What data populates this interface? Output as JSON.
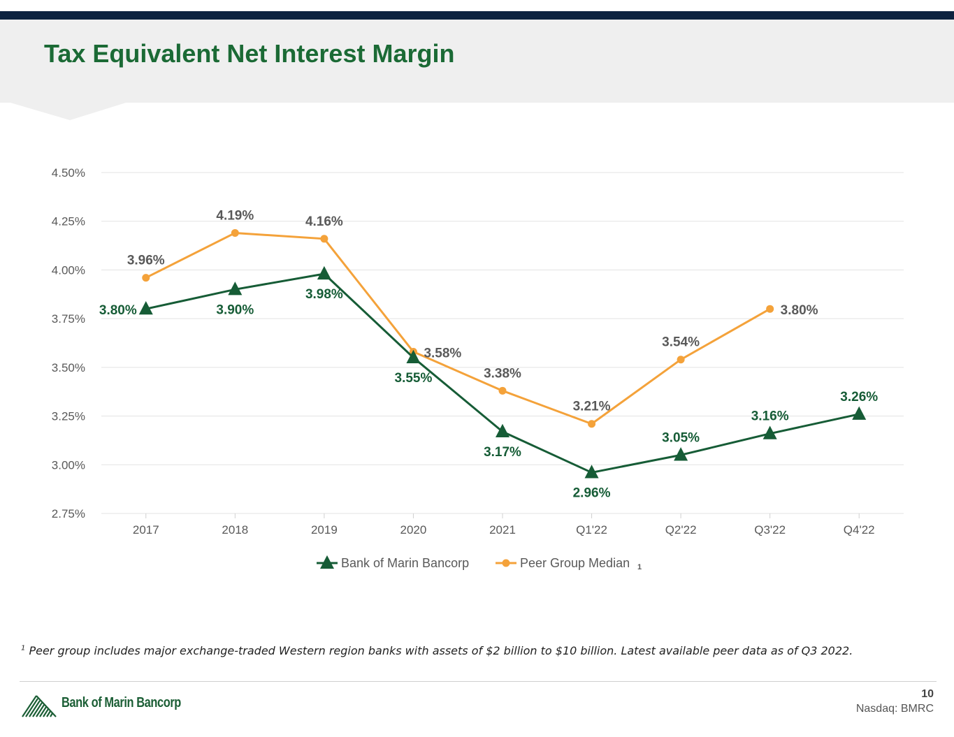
{
  "title": "Tax Equivalent Net Interest Margin",
  "footnote": {
    "marker": "1",
    "text": "Peer group includes major exchange-traded Western region banks with assets of $2 billion to $10 billion. Latest available peer data as of Q3 2022."
  },
  "footer": {
    "company": "Bank of Marin Bancorp",
    "page_number": "10",
    "ticker": "Nasdaq: BMRC"
  },
  "colors": {
    "title": "#1b6a35",
    "bank_series": "#165c36",
    "peer_series": "#f4a23a",
    "peer_label": "#595959",
    "top_bar": "#0d2340",
    "header_bg": "#efefef"
  },
  "chart_data": {
    "type": "line",
    "title": "",
    "xlabel": "",
    "ylabel": "",
    "categories": [
      "2017",
      "2018",
      "2019",
      "2020",
      "2021",
      "Q1'22",
      "Q2'22",
      "Q3'22",
      "Q4'22"
    ],
    "ylim": [
      2.75,
      4.5
    ],
    "yticks": [
      "2.75%",
      "3.00%",
      "3.25%",
      "3.50%",
      "3.75%",
      "4.00%",
      "4.25%",
      "4.50%"
    ],
    "ytick_values": [
      2.75,
      3.0,
      3.25,
      3.5,
      3.75,
      4.0,
      4.25,
      4.5
    ],
    "grid": true,
    "legend_position": "bottom-center",
    "series": [
      {
        "name": "Bank of Marin Bancorp",
        "marker": "triangle",
        "values": [
          3.8,
          3.9,
          3.98,
          3.55,
          3.17,
          2.96,
          3.05,
          3.16,
          3.26
        ],
        "labels": [
          "3.80%",
          "3.90%",
          "3.98%",
          "3.55%",
          "3.17%",
          "2.96%",
          "3.05%",
          "3.16%",
          "3.26%"
        ],
        "label_positions": [
          "left",
          "below",
          "below",
          "below",
          "below",
          "below",
          "above",
          "above",
          "above"
        ]
      },
      {
        "name": "Peer Group Median",
        "legend_suffix": "1",
        "marker": "circle",
        "values": [
          3.96,
          4.19,
          4.16,
          3.58,
          3.38,
          3.21,
          3.54,
          3.8,
          null
        ],
        "labels": [
          "3.96%",
          "4.19%",
          "4.16%",
          "3.58%",
          "3.38%",
          "3.21%",
          "3.54%",
          "3.80%",
          null
        ],
        "label_positions": [
          "above",
          "above",
          "above",
          "right",
          "above",
          "above",
          "above",
          "right",
          null
        ]
      }
    ]
  }
}
